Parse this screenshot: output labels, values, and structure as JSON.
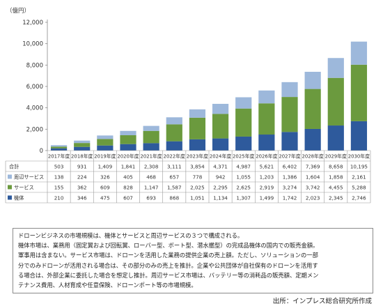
{
  "chart_data": {
    "type": "bar",
    "stacked": true,
    "unit_label": "（億円）",
    "ylim": [
      0,
      12000
    ],
    "yticks": [
      0,
      2000,
      4000,
      6000,
      8000,
      10000,
      12000
    ],
    "ytick_labels": [
      "0",
      "2,000",
      "4,000",
      "6,000",
      "8,000",
      "10,000",
      "12,000"
    ],
    "grid": false,
    "legend_placement": "table-left",
    "categories": [
      "2017年度",
      "2018年度",
      "2019年度",
      "2020年度",
      "2021年度",
      "2022年度",
      "2023年度",
      "2024年度",
      "2025年度",
      "2026年度",
      "2027年度",
      "2028年度",
      "2029年度",
      "2030年度"
    ],
    "totals_label": "合計",
    "totals": [
      "503",
      "931",
      "1,409",
      "1,841",
      "2,308",
      "3,111",
      "3,854",
      "4,371",
      "4,987",
      "5,621",
      "6,402",
      "7,369",
      "8,658",
      "10,195"
    ],
    "series": [
      {
        "name": "機体",
        "color": "#2e5a9c",
        "values": [
          210,
          346,
          475,
          607,
          693,
          868,
          1051,
          1134,
          1307,
          1499,
          1742,
          2023,
          2345,
          2746
        ],
        "labels": [
          "210",
          "346",
          "475",
          "607",
          "693",
          "868",
          "1,051",
          "1,134",
          "1,307",
          "1,499",
          "1,742",
          "2,023",
          "2,345",
          "2,746"
        ]
      },
      {
        "name": "サービス",
        "color": "#6b9a3e",
        "values": [
          155,
          362,
          609,
          828,
          1147,
          1587,
          2025,
          2295,
          2625,
          2919,
          3274,
          3742,
          4455,
          5288
        ],
        "labels": [
          "155",
          "362",
          "609",
          "828",
          "1,147",
          "1,587",
          "2,025",
          "2,295",
          "2,625",
          "2,919",
          "3,274",
          "3,742",
          "4,455",
          "5,288"
        ]
      },
      {
        "name": "周辺サービス",
        "color": "#9db8db",
        "values": [
          138,
          224,
          326,
          405,
          468,
          657,
          778,
          942,
          1055,
          1203,
          1386,
          1604,
          1858,
          2161
        ],
        "labels": [
          "138",
          "224",
          "326",
          "405",
          "468",
          "657",
          "778",
          "942",
          "1,055",
          "1,203",
          "1,386",
          "1,604",
          "1,858",
          "2,161"
        ]
      }
    ],
    "table_row_order": [
      2,
      1,
      0
    ]
  },
  "note": {
    "lines": [
      "ドローンビジネスの市場規模は、機体とサービスと周辺サービスの３つで構成される。",
      "機体市場は、業務用（固定翼および回転翼、ローバー型、ボート型、潜水艦型）の完成品機体の国内での販売金額。",
      "軍事用は含まない。サービス市場は、ドローンを活用した業務の提供企業の売上額。ただし、ソリューションの一部",
      "分でのみドローンが活用される場合は、その部分のみの売上を推計。企業や公共団体が自社保有のドローンを活用す",
      "る場合は、外部企業に委託した場合を想定し推計。周辺サービス市場は、バッテリー等の消耗品の販売額、定期メン",
      "テナンス費用、人材育成や任意保険、ドローンポート等の市場規模。"
    ]
  },
  "source": "出所：インプレス総合研究所作成"
}
